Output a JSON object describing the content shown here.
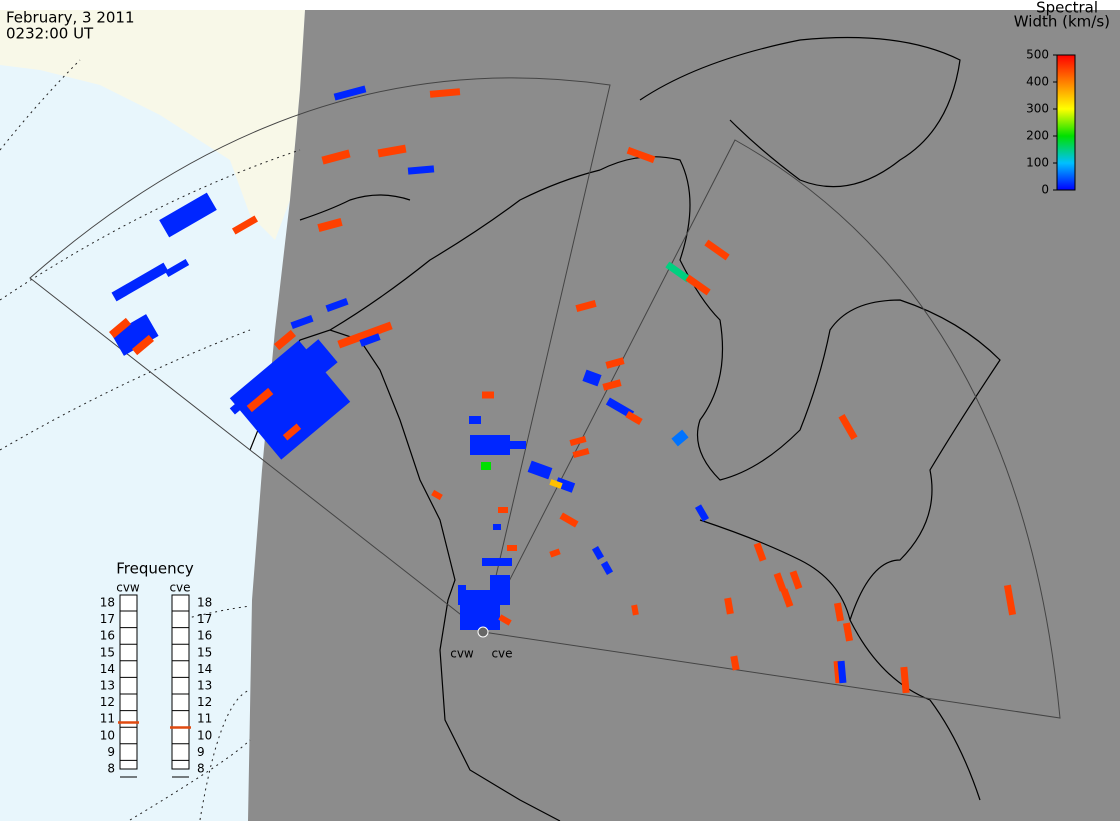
{
  "header": {
    "date": "February, 3 2011",
    "time": "0232:00 UT"
  },
  "colorbar": {
    "title": [
      "Spectral",
      "Width (km/s)"
    ],
    "lim": [
      0,
      500
    ],
    "ticks": [
      0,
      100,
      200,
      300,
      400,
      500
    ]
  },
  "frequency": {
    "title": "Frequency",
    "lim": [
      8,
      18
    ],
    "ticks": [
      8,
      9,
      10,
      11,
      12,
      13,
      14,
      15,
      16,
      17,
      18
    ],
    "radars": [
      {
        "name": "cvw",
        "value": 10.8
      },
      {
        "name": "cve",
        "value": 10.5
      }
    ]
  },
  "radar_sites": [
    "cvw",
    "cve"
  ],
  "echoes": [
    20,
    450,
    450,
    450,
    20,
    20,
    450,
    20,
    20,
    20,
    450,
    450,
    450,
    20,
    20,
    450,
    450,
    20,
    20,
    20,
    450,
    20,
    450,
    450,
    450,
    150,
    450,
    450,
    450,
    450,
    20,
    20,
    450,
    60,
    450,
    450,
    20,
    20,
    200,
    20,
    20,
    20,
    350,
    450,
    450,
    450,
    450,
    20,
    20,
    20,
    450,
    450,
    450,
    450,
    450,
    450,
    450,
    450,
    450,
    450,
    450,
    450,
    20,
    450,
    20,
    20,
    450,
    20,
    20,
    450,
    450,
    20
  ]
}
